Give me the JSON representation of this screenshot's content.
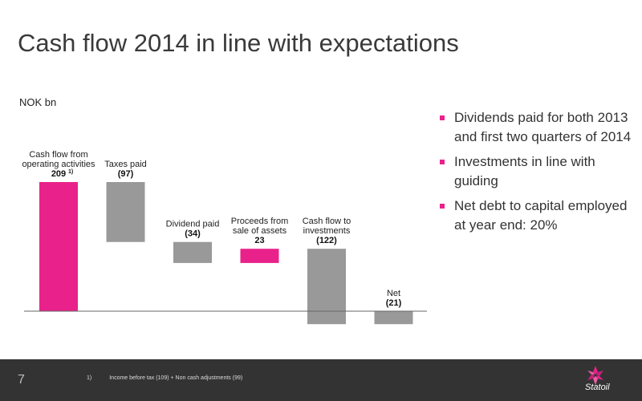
{
  "slide": {
    "title": "Cash flow 2014 in line with expectations",
    "unit_label": "NOK bn",
    "page_number": "7"
  },
  "bullets": [
    "Dividends paid for both 2013 and first two quarters of 2014",
    "Investments in line with guiding",
    "Net debt to capital employed at year end: 20%"
  ],
  "footer": {
    "footnote_marker": "1)",
    "footnote_text": "Income before tax (109) + Non cash adjustments (99)",
    "logo_text": "Statoil"
  },
  "colors": {
    "positive": "#e8228a",
    "negative": "#999999",
    "bullet": "#e8228a",
    "footer_bg": "#333333"
  },
  "chart_data": {
    "type": "bar",
    "subtype": "waterfall",
    "unit": "NOK bn",
    "categories": [
      [
        "Cash flow from",
        "operating activities"
      ],
      [
        "Taxes paid"
      ],
      [
        "Dividend paid"
      ],
      [
        "Proceeds from",
        "sale of assets"
      ],
      [
        "Cash flow to",
        "investments"
      ],
      [
        "Net"
      ]
    ],
    "value_labels": [
      "209",
      "(97)",
      "(34)",
      "23",
      "(122)",
      "(21)"
    ],
    "values": [
      209,
      -97,
      -34,
      23,
      -122,
      -21
    ],
    "bar_kind": [
      "increase",
      "decrease",
      "decrease",
      "increase",
      "decrease",
      "total"
    ],
    "superscripts": [
      "1)",
      "",
      "",
      "",
      "",
      ""
    ],
    "ylim": [
      -21,
      209
    ]
  }
}
